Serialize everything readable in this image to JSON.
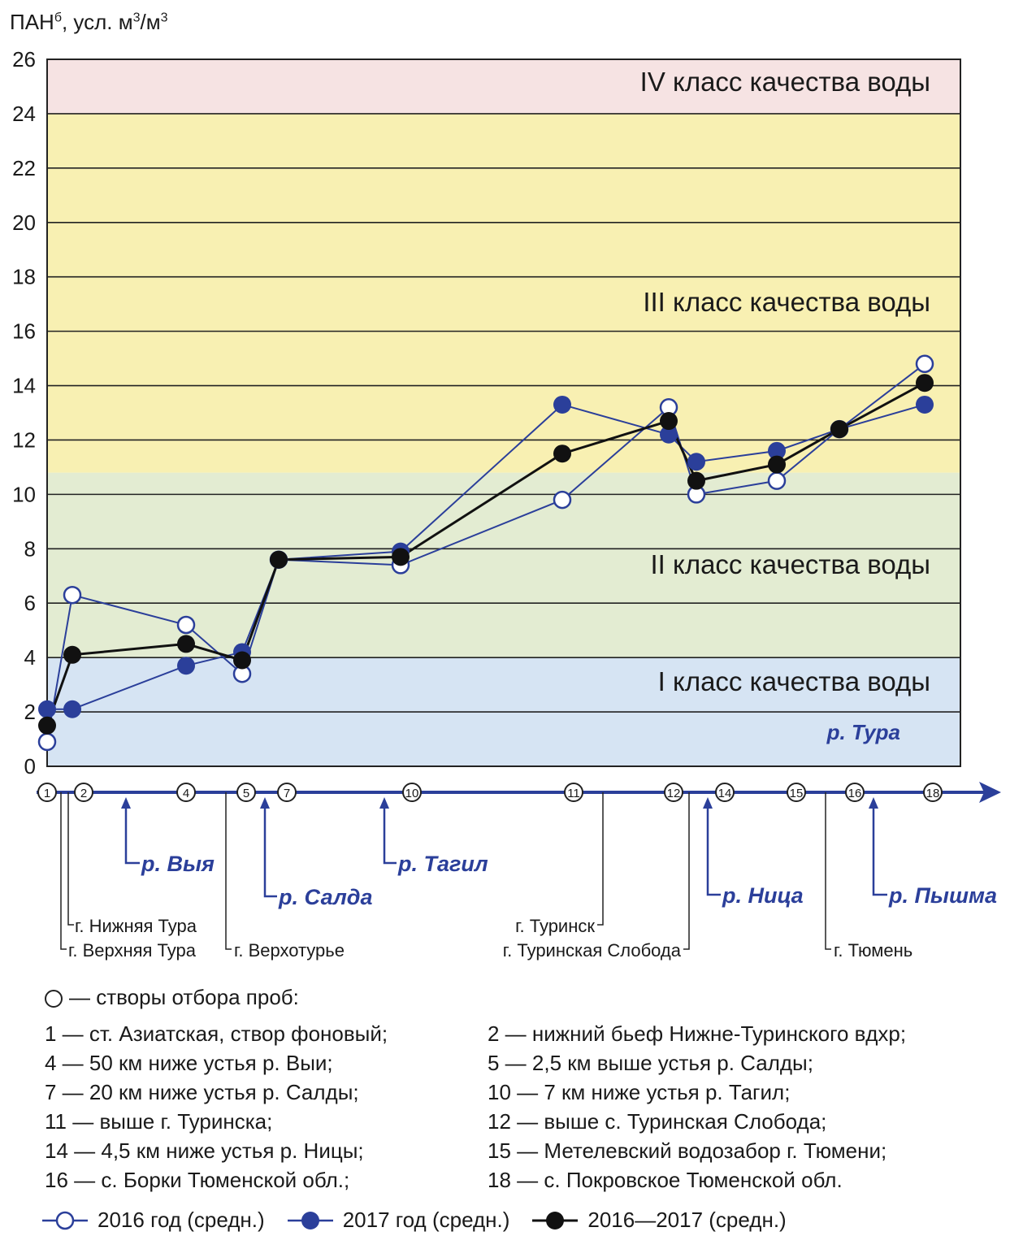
{
  "y_axis_title_main": "ПАН",
  "y_axis_title_sup": "б",
  "y_axis_title_rest": ", усл. м",
  "y_axis_title_sup2": "3",
  "y_axis_title_rest2": "/м",
  "y_axis_title_sup3": "3",
  "chart_data": {
    "type": "line",
    "ylim": [
      0,
      26
    ],
    "yticks": [
      0,
      2,
      4,
      6,
      8,
      10,
      12,
      14,
      16,
      18,
      20,
      22,
      24,
      26
    ],
    "grid": true,
    "bands": [
      {
        "label": "I класс качества воды",
        "from": 0,
        "to": 4,
        "color": "#d6e4f3"
      },
      {
        "label": "II класс качества воды",
        "from": 4,
        "to": 10.8,
        "color": "#e3ecd2"
      },
      {
        "label": "III класс качества воды",
        "from": 10.8,
        "to": 24,
        "color": "#f8f0b2"
      },
      {
        "label": "IV класс качества воды",
        "from": 24,
        "to": 26,
        "color": "#f6e3e3"
      }
    ],
    "river_label": "р. Тура",
    "stations": [
      "1",
      "2",
      "4",
      "5",
      "7",
      "10",
      "11",
      "12",
      "14",
      "15",
      "16",
      "18"
    ],
    "series": [
      {
        "name": "2016 год (средн.)",
        "style": "open",
        "color": "#2b3f9a",
        "values": [
          0.9,
          6.3,
          5.2,
          3.4,
          7.6,
          7.4,
          9.8,
          13.2,
          10.0,
          10.5,
          12.4,
          14.8
        ]
      },
      {
        "name": "2017 год (средн.)",
        "style": "blue",
        "color": "#2b3f9a",
        "values": [
          2.1,
          2.1,
          3.7,
          4.2,
          7.6,
          7.9,
          13.3,
          12.2,
          11.2,
          11.6,
          12.4,
          13.3
        ]
      },
      {
        "name": "2016—2017 (средн.)",
        "style": "black",
        "color": "#111111",
        "values": [
          1.5,
          4.1,
          4.5,
          3.9,
          7.6,
          7.7,
          11.5,
          12.7,
          10.5,
          11.1,
          12.4,
          14.1
        ]
      }
    ],
    "tributaries": [
      "р. Выя",
      "р. Салда",
      "р. Тагил",
      "р. Ница",
      "р. Пышма"
    ],
    "cities": [
      "г. Нижняя Тура",
      "г. Верхняя Тура",
      "г. Верхотурье",
      "г. Туринск",
      "г. Туринская Слобода",
      "г. Тюмень"
    ]
  },
  "caption": "— створы отбора проб:",
  "station_list": [
    [
      "1 — ст. Азиатская, створ фоновый;",
      "2 — нижний бьеф Нижне-Туринского вдхр;"
    ],
    [
      "4 — 50 км ниже устья р. Выи;",
      "5 — 2,5 км выше устья р. Салды;"
    ],
    [
      "7 — 20 км ниже устья р. Салды;",
      "10 — 7 км ниже устья р. Тагил;"
    ],
    [
      "11 — выше г. Туринска;",
      "12 — выше с. Туринская Слобода;"
    ],
    [
      "14 — 4,5 км ниже устья р. Ницы;",
      "15 — Метелевский водозабор г. Тюмени;"
    ],
    [
      "16 — с. Борки Тюменской обл.;",
      "18 — с. Покровское Тюменской обл."
    ]
  ],
  "legend": [
    "2016 год (средн.)",
    "2017 год (средн.)",
    "2016—2017 (средн.)"
  ]
}
